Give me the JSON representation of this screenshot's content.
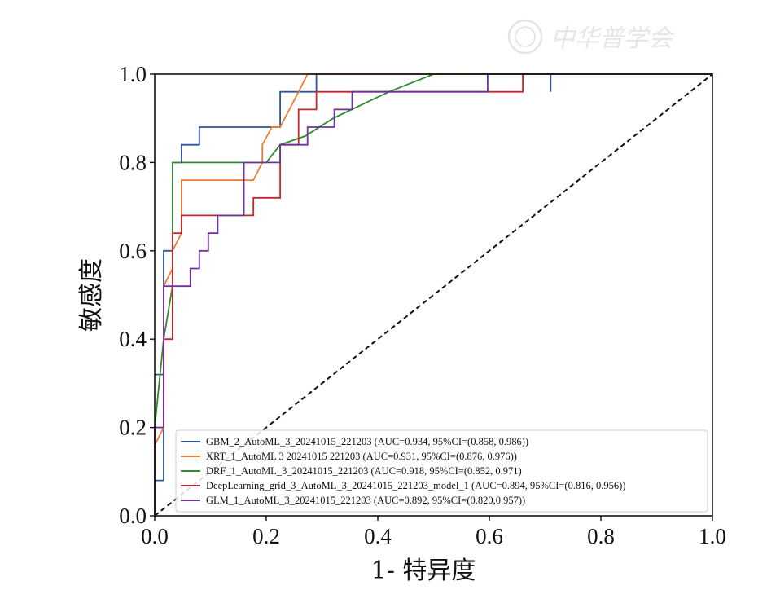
{
  "watermark": {
    "text": "中华普学会",
    "color": "#e2e2e2"
  },
  "chart_data": {
    "type": "line",
    "title": "",
    "xlabel": "1- 特异度",
    "ylabel": "敏感度",
    "xlim": [
      0.0,
      1.0
    ],
    "ylim": [
      0.0,
      1.0
    ],
    "x_ticks": [
      "0.0",
      "0.2",
      "0.4",
      "0.6",
      "0.8",
      "1.0"
    ],
    "y_ticks": [
      "0.0",
      "0.2",
      "0.4",
      "0.6",
      "0.8",
      "1.0"
    ],
    "grid": false,
    "legend_position": "lower-right",
    "reference_line": {
      "style": "dashed",
      "color": "#111111",
      "points": [
        [
          0.0,
          0.0
        ],
        [
          1.0,
          1.0
        ]
      ]
    },
    "series": [
      {
        "name": "GBM_2_AutoML_3_20241015_221203 (AUC=0.934, 95%CI=(0.858, 0.986))",
        "color": "#2f5597",
        "points": [
          [
            0.0,
            0.0
          ],
          [
            0.0,
            0.08
          ],
          [
            0.016,
            0.08
          ],
          [
            0.016,
            0.32
          ],
          [
            0.0,
            0.32
          ],
          [
            0.0,
            0.32
          ],
          [
            0.016,
            0.32
          ],
          [
            0.016,
            0.6
          ],
          [
            0.032,
            0.6
          ],
          [
            0.032,
            0.8
          ],
          [
            0.048,
            0.8
          ],
          [
            0.048,
            0.84
          ],
          [
            0.08,
            0.84
          ],
          [
            0.08,
            0.88
          ],
          [
            0.225,
            0.88
          ],
          [
            0.225,
            0.96
          ],
          [
            0.29,
            0.96
          ],
          [
            0.29,
            1.0
          ],
          [
            0.71,
            1.0
          ],
          [
            0.71,
            0.96
          ],
          [
            0.71,
            1.0
          ],
          [
            1.0,
            1.0
          ]
        ]
      },
      {
        "name": "XRT_1_AutoML 3 20241015 221203 (AUC=0.931, 95%CI=(0.876, 0.976))",
        "color": "#ed7d31",
        "points": [
          [
            0.0,
            0.0
          ],
          [
            0.0,
            0.16
          ],
          [
            0.016,
            0.2
          ],
          [
            0.016,
            0.52
          ],
          [
            0.032,
            0.56
          ],
          [
            0.032,
            0.6
          ],
          [
            0.048,
            0.64
          ],
          [
            0.048,
            0.76
          ],
          [
            0.177,
            0.76
          ],
          [
            0.193,
            0.8
          ],
          [
            0.193,
            0.84
          ],
          [
            0.21,
            0.88
          ],
          [
            0.225,
            0.88
          ],
          [
            0.258,
            0.96
          ],
          [
            0.274,
            1.0
          ],
          [
            0.29,
            1.0
          ],
          [
            1.0,
            1.0
          ]
        ]
      },
      {
        "name": "DRF_1_AutoML_3_20241015_221203 (AUC=0.918, 95%CI=(0.852, 0.971)",
        "color": "#2e8b2e",
        "points": [
          [
            0.0,
            0.04
          ],
          [
            0.0,
            0.2
          ],
          [
            0.016,
            0.4
          ],
          [
            0.032,
            0.52
          ],
          [
            0.032,
            0.8
          ],
          [
            0.2,
            0.8
          ],
          [
            0.225,
            0.84
          ],
          [
            0.27,
            0.86
          ],
          [
            0.32,
            0.9
          ],
          [
            0.37,
            0.93
          ],
          [
            0.42,
            0.96
          ],
          [
            0.48,
            0.99
          ],
          [
            0.5,
            1.0
          ],
          [
            1.0,
            1.0
          ]
        ]
      },
      {
        "name": "DeepLearning_grid_3_AutoML_3_20241015_221203_model_1 (AUC=0.894, 95%CI=(0.816, 0.956))",
        "color": "#c0282d",
        "points": [
          [
            0.0,
            0.0
          ],
          [
            0.0,
            0.2
          ],
          [
            0.016,
            0.2
          ],
          [
            0.016,
            0.4
          ],
          [
            0.032,
            0.4
          ],
          [
            0.032,
            0.64
          ],
          [
            0.048,
            0.64
          ],
          [
            0.048,
            0.68
          ],
          [
            0.177,
            0.68
          ],
          [
            0.177,
            0.72
          ],
          [
            0.225,
            0.72
          ],
          [
            0.225,
            0.84
          ],
          [
            0.258,
            0.84
          ],
          [
            0.258,
            0.92
          ],
          [
            0.29,
            0.92
          ],
          [
            0.29,
            0.96
          ],
          [
            0.66,
            0.96
          ],
          [
            0.66,
            1.0
          ],
          [
            1.0,
            1.0
          ]
        ]
      },
      {
        "name": "GLM_1_AutoML_3_20241015_221203 (AUC=0.892, 95%CI=(0.820,0.957))",
        "color": "#7030a0",
        "points": [
          [
            0.0,
            0.0
          ],
          [
            0.0,
            0.2
          ],
          [
            0.016,
            0.2
          ],
          [
            0.016,
            0.52
          ],
          [
            0.064,
            0.52
          ],
          [
            0.064,
            0.56
          ],
          [
            0.08,
            0.56
          ],
          [
            0.08,
            0.6
          ],
          [
            0.096,
            0.6
          ],
          [
            0.096,
            0.64
          ],
          [
            0.113,
            0.64
          ],
          [
            0.113,
            0.68
          ],
          [
            0.16,
            0.68
          ],
          [
            0.16,
            0.8
          ],
          [
            0.225,
            0.8
          ],
          [
            0.225,
            0.84
          ],
          [
            0.274,
            0.84
          ],
          [
            0.274,
            0.88
          ],
          [
            0.322,
            0.88
          ],
          [
            0.322,
            0.92
          ],
          [
            0.354,
            0.92
          ],
          [
            0.354,
            0.96
          ],
          [
            0.597,
            0.96
          ],
          [
            0.597,
            1.0
          ],
          [
            1.0,
            1.0
          ]
        ]
      }
    ]
  }
}
